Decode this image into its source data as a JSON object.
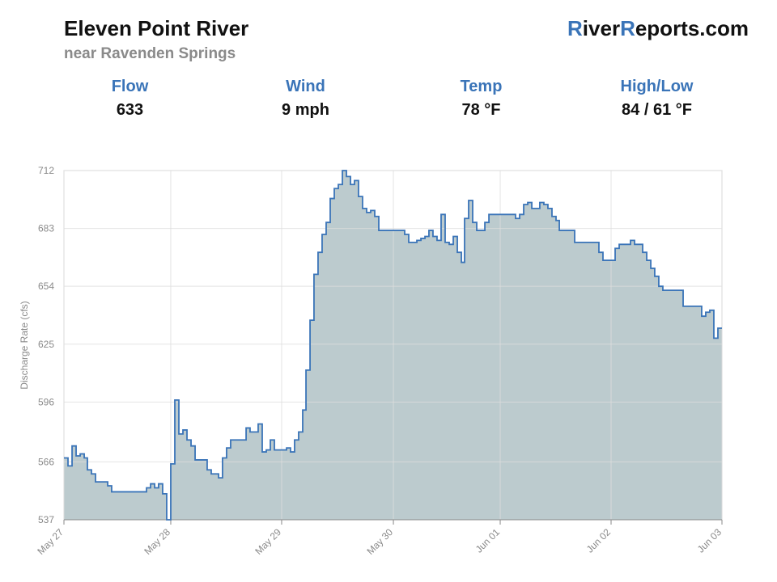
{
  "header": {
    "title": "Eleven Point River",
    "subtitle": "near Ravenden Springs",
    "logo": [
      "R",
      "iver",
      "R",
      "eports.com"
    ]
  },
  "stats": [
    {
      "label": "Flow",
      "value": "633"
    },
    {
      "label": "Wind",
      "value": "9 mph"
    },
    {
      "label": "Temp",
      "value": "78 °F"
    },
    {
      "label": "High/Low",
      "value": "84 / 61 °F"
    }
  ],
  "chart_data": {
    "type": "area",
    "step": true,
    "grid": true,
    "color": "#3a74b8",
    "fill": "#bccbce",
    "ylabel": "Discharge Rate (cfs)",
    "xlim": [
      0,
      6
    ],
    "xticks": [
      {
        "value": 0,
        "label": "May 27"
      },
      {
        "value": 0.974,
        "label": "May 28"
      },
      {
        "value": 1.985,
        "label": "May 29"
      },
      {
        "value": 3.004,
        "label": "May 30"
      },
      {
        "value": 3.978,
        "label": "Jun 01"
      },
      {
        "value": 4.989,
        "label": "Jun 02"
      },
      {
        "value": 6,
        "label": "Jun 03"
      }
    ],
    "ylim": [
      537,
      712
    ],
    "yticks": [
      537,
      566,
      596,
      625,
      654,
      683,
      712
    ],
    "x": [
      0,
      0.037,
      0.074,
      0.111,
      0.148,
      0.185,
      0.214,
      0.251,
      0.288,
      0.399,
      0.435,
      0.753,
      0.79,
      0.827,
      0.863,
      0.9,
      0.937,
      0.974,
      1.011,
      1.048,
      1.085,
      1.122,
      1.159,
      1.196,
      1.306,
      1.343,
      1.41,
      1.446,
      1.483,
      1.52,
      1.661,
      1.697,
      1.734,
      1.771,
      1.808,
      1.845,
      1.882,
      1.919,
      2.03,
      2.066,
      2.103,
      2.14,
      2.177,
      2.207,
      2.244,
      2.28,
      2.317,
      2.354,
      2.391,
      2.428,
      2.465,
      2.502,
      2.539,
      2.576,
      2.613,
      2.649,
      2.686,
      2.723,
      2.76,
      2.797,
      2.834,
      2.871,
      3.107,
      3.144,
      3.218,
      3.255,
      3.292,
      3.328,
      3.365,
      3.402,
      3.439,
      3.476,
      3.513,
      3.55,
      3.587,
      3.624,
      3.653,
      3.69,
      3.727,
      3.764,
      3.838,
      3.875,
      4.118,
      4.155,
      4.192,
      4.229,
      4.266,
      4.339,
      4.376,
      4.413,
      4.45,
      4.487,
      4.517,
      4.657,
      4.878,
      4.915,
      5.026,
      5.063,
      5.166,
      5.203,
      5.277,
      5.314,
      5.351,
      5.387,
      5.424,
      5.461,
      5.646,
      5.815,
      5.852,
      5.889,
      5.926,
      5.963,
      6
    ],
    "values": [
      568,
      564,
      574,
      569,
      570,
      568,
      562,
      560,
      556,
      554,
      551,
      553,
      555,
      553,
      555,
      550,
      537,
      565,
      597,
      580,
      582,
      577,
      574,
      567,
      562,
      560,
      558,
      568,
      573,
      577,
      583,
      581,
      581,
      585,
      571,
      572,
      577,
      572,
      573,
      571,
      577,
      581,
      592,
      612,
      637,
      660,
      671,
      680,
      686,
      698,
      703,
      705,
      712,
      709,
      705,
      707,
      699,
      693,
      691,
      692,
      689,
      682,
      680,
      676,
      677,
      678,
      679,
      682,
      679,
      677,
      690,
      676,
      675,
      679,
      671,
      666,
      688,
      697,
      686,
      682,
      686,
      690,
      688,
      690,
      695,
      696,
      693,
      696,
      695,
      693,
      689,
      687,
      682,
      676,
      671,
      667,
      673,
      675,
      677,
      675,
      671,
      667,
      663,
      659,
      654,
      652,
      644,
      639,
      641,
      642,
      628,
      633,
      633
    ]
  }
}
